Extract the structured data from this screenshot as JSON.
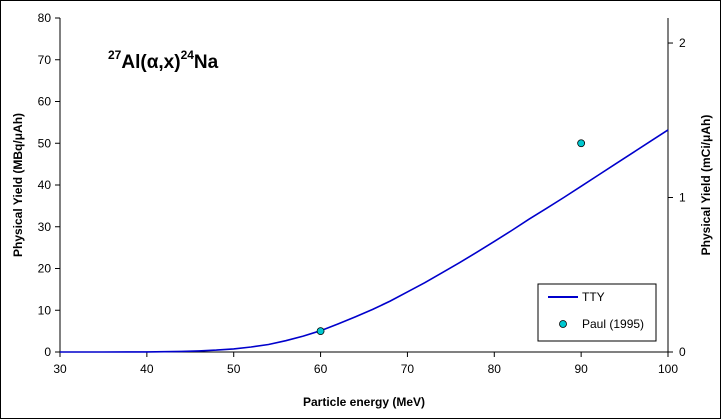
{
  "chart_data": {
    "type": "line",
    "title_parts": {
      "mass_target": "27",
      "target": "Al(",
      "projectile": "α",
      "rest": ",x)",
      "mass_product": "24",
      "product": "Na"
    },
    "xlabel": "Particle energy (MeV)",
    "ylabel": "Physical Yield (MBq/μAh)",
    "y2label": "Physical Yield (mCi/μAh)",
    "xlim": [
      30,
      100
    ],
    "ylim": [
      0,
      80
    ],
    "y2lim": [
      0,
      2.162
    ],
    "x_ticks": [
      30,
      40,
      50,
      60,
      70,
      80,
      90,
      100
    ],
    "y_ticks": [
      0,
      10,
      20,
      30,
      40,
      50,
      60,
      70,
      80
    ],
    "y2_ticks": [
      0,
      1,
      2
    ],
    "grid": false,
    "legend_position": "bottom-right",
    "series": [
      {
        "name": "TTY",
        "kind": "line",
        "color": "#0000cc",
        "x": [
          30,
          35,
          40,
          42,
          44,
          46,
          48,
          50,
          52,
          54,
          56,
          58,
          60,
          62,
          64,
          66,
          68,
          70,
          72,
          74,
          76,
          78,
          80,
          82,
          84,
          86,
          88,
          90,
          92,
          94,
          96,
          98,
          100
        ],
        "y": [
          0,
          0,
          0.03,
          0.08,
          0.15,
          0.27,
          0.45,
          0.75,
          1.2,
          1.8,
          2.7,
          3.8,
          5.1,
          6.7,
          8.4,
          10.2,
          12.2,
          14.4,
          16.6,
          19.0,
          21.4,
          23.9,
          26.5,
          29.1,
          31.8,
          34.4,
          37.0,
          39.7,
          42.4,
          45.1,
          47.8,
          50.5,
          53.2
        ]
      },
      {
        "name": "Paul (1995)",
        "kind": "scatter",
        "color": "#00c8d0",
        "x": [
          60,
          90
        ],
        "y": [
          5,
          50
        ]
      }
    ]
  }
}
